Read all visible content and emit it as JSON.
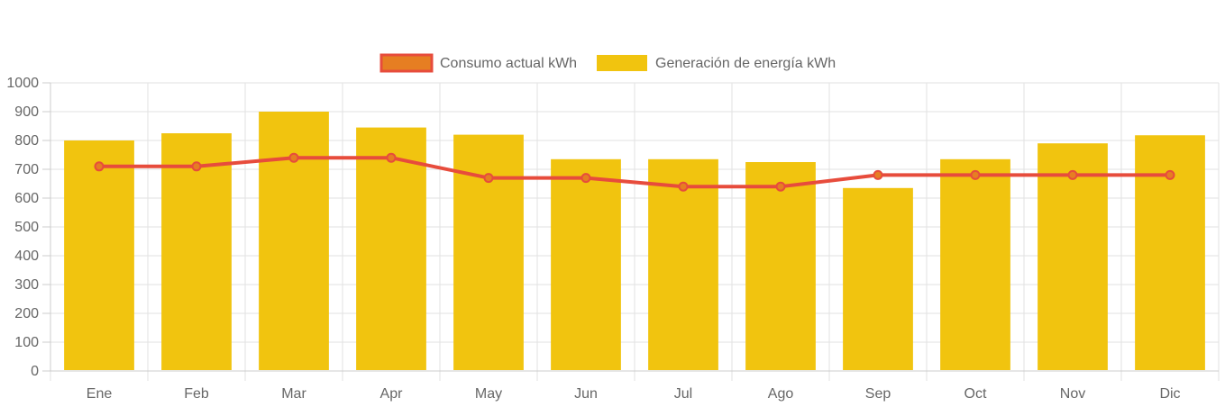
{
  "chart_data": {
    "type": "bar",
    "categories": [
      "Ene",
      "Feb",
      "Mar",
      "Apr",
      "May",
      "Jun",
      "Jul",
      "Ago",
      "Sep",
      "Oct",
      "Nov",
      "Dic"
    ],
    "series": [
      {
        "name": "Consumo actual kWh",
        "kind": "line",
        "color": "#e74c3c",
        "point_fill": "#e67e22",
        "values": [
          710,
          710,
          740,
          740,
          670,
          670,
          640,
          640,
          680,
          680,
          680,
          680
        ]
      },
      {
        "name": "Generación de energía kWh",
        "kind": "bar",
        "color": "#f1c40f",
        "values": [
          800,
          825,
          900,
          845,
          820,
          735,
          735,
          725,
          635,
          735,
          790,
          818
        ]
      }
    ],
    "ylim": [
      0,
      1000
    ],
    "yticks": [
      0,
      100,
      200,
      300,
      400,
      500,
      600,
      700,
      800,
      900,
      1000
    ],
    "grid": true,
    "legend_position": "top-center"
  }
}
